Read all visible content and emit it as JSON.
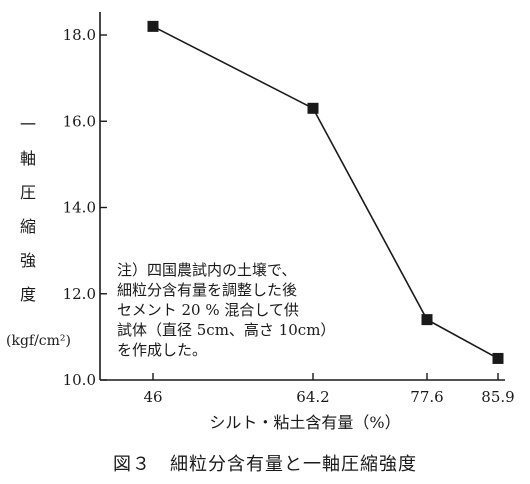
{
  "chart_data": {
    "type": "line",
    "x": [
      46,
      64.2,
      77.6,
      85.9
    ],
    "y": [
      18.2,
      16.3,
      11.4,
      10.5
    ],
    "x_tick_labels": [
      "46",
      "64.2",
      "77.6",
      "85.9"
    ],
    "y_ticks": [
      10.0,
      12.0,
      14.0,
      16.0,
      18.0
    ],
    "y_tick_labels": [
      "10.0",
      "12.0",
      "14.0",
      "16.0",
      "18.0"
    ],
    "ylim": [
      10.0,
      18.6
    ],
    "xlabel": "シルト・粘土含有量（%）",
    "ylabel": "一軸圧縮強度",
    "ylabel_unit": "(kgf/cm²)",
    "annotation": [
      "注）四国農試内の土壌で、",
      "細粒分含有量を調整した後",
      "セメント 20 % 混合して供",
      "試体（直径 5cm、高さ 10cm）",
      "を作成した。"
    ],
    "marker": "square",
    "grid": false,
    "line_color": "#1a1a1a"
  },
  "caption": "図３　細粒分含有量と一軸圧縮強度"
}
